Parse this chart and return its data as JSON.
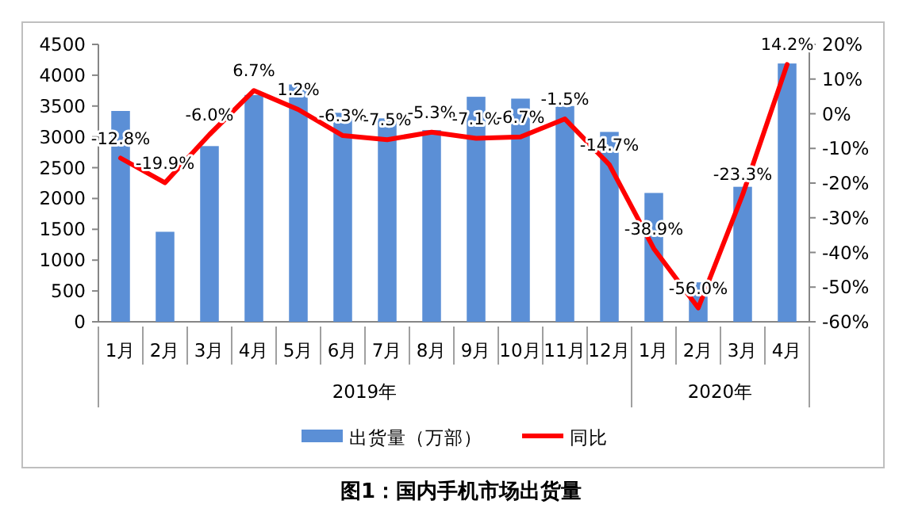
{
  "chart_data": {
    "type": "bar",
    "title": "图1：国内手机市场出货量",
    "categories": [
      "1月",
      "2月",
      "3月",
      "4月",
      "5月",
      "6月",
      "7月",
      "8月",
      "9月",
      "10月",
      "11月",
      "12月",
      "1月",
      "2月",
      "3月",
      "4月"
    ],
    "annotations": [
      "2019年",
      "2020年"
    ],
    "series": [
      {
        "name": "出货量（万部）",
        "color": "#5b8fd6",
        "values": [
          3420,
          1460,
          2850,
          3680,
          3850,
          3390,
          3300,
          3110,
          3650,
          3620,
          3500,
          3080,
          2090,
          640,
          2190,
          4190
        ]
      },
      {
        "name": "同比",
        "type": "line",
        "axis": "y2",
        "color": "#ff0000",
        "marker": "none",
        "values": [
          -12.8,
          -19.9,
          -6.0,
          6.7,
          1.2,
          -6.3,
          -7.5,
          -5.3,
          -7.1,
          -6.7,
          -1.5,
          -14.7,
          -38.9,
          -56.0,
          -23.3,
          14.2
        ],
        "value_labels": [
          "-12.8%",
          "-19.9%",
          "-6.0%",
          "6.7%",
          "1.2%",
          "-6.3%",
          "-7.5%",
          "-5.3%",
          "-7.1%",
          "-6.7%",
          "-1.5%",
          "-14.7%",
          "-38.9%",
          "-56.0%",
          "-23.3%",
          "14.2%"
        ]
      }
    ],
    "ylim": [
      0,
      4500
    ],
    "yticks": [
      0,
      500,
      1000,
      1500,
      2000,
      2500,
      3000,
      3500,
      4000,
      4500
    ],
    "y2lim": [
      -60,
      20
    ],
    "y2ticks": [
      {
        "value": -60,
        "label": "-60%"
      },
      {
        "value": -50,
        "label": "-50%"
      },
      {
        "value": -40,
        "label": "-40%"
      },
      {
        "value": -30,
        "label": "-30%"
      },
      {
        "value": -20,
        "label": "-20%"
      },
      {
        "value": -10,
        "label": "-10%"
      },
      {
        "value": 0,
        "label": "0%"
      },
      {
        "value": 10,
        "label": "10%"
      },
      {
        "value": 20,
        "label": "20%"
      }
    ],
    "grid": false,
    "legend": "bottom"
  }
}
